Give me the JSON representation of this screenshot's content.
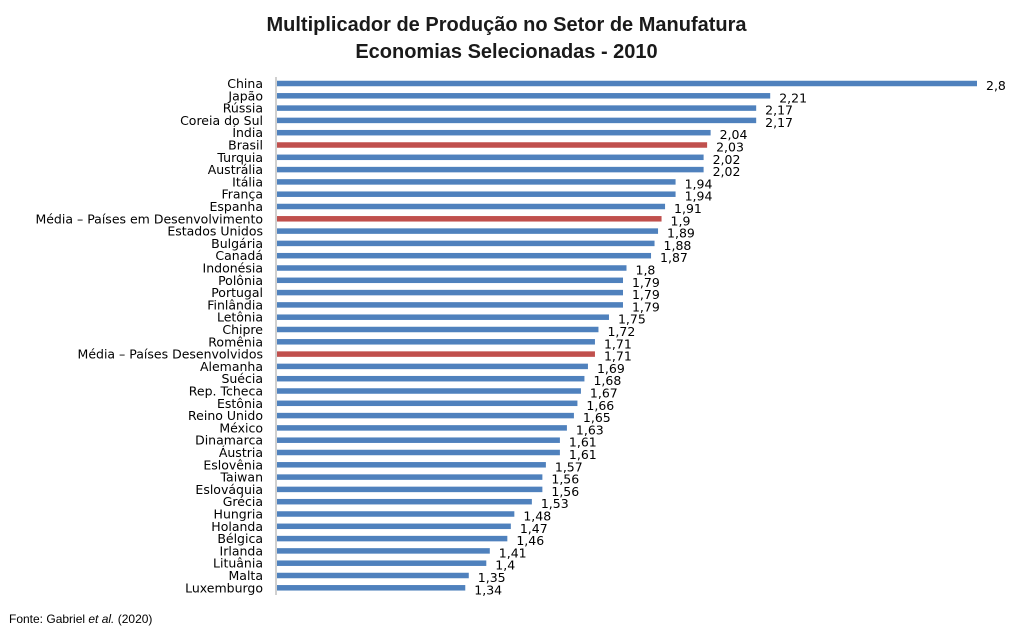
{
  "chart_data": {
    "type": "bar",
    "orientation": "horizontal",
    "title": "Multiplicador de Produção no Setor de Manufatura",
    "subtitle": "Economias Selecionadas - 2010",
    "categories": [
      "China",
      "Japão",
      "Rússia",
      "Coreia do Sul",
      "Índia",
      "Brasil",
      "Turquia",
      "Austrália",
      "Itália",
      "França",
      "Espanha",
      "Média – Países em Desenvolvimento",
      "Estados Unidos",
      "Bulgária",
      "Canadá",
      "Indonésia",
      "Polônia",
      "Portugal",
      "Finlândia",
      "Letônia",
      "Chipre",
      "Romênia",
      "Média – Países Desenvolvidos",
      "Alemanha",
      "Suécia",
      "Rep. Tcheca",
      "Estônia",
      "Reino Unido",
      "México",
      "Dinamarca",
      "Áustria",
      "Eslovênia",
      "Taiwan",
      "Eslováquia",
      "Grécia",
      "Hungria",
      "Holanda",
      "Bélgica",
      "Irlanda",
      "Lituânia",
      "Malta",
      "Luxemburgo"
    ],
    "values": [
      2.8,
      2.21,
      2.17,
      2.17,
      2.04,
      2.03,
      2.02,
      2.02,
      1.94,
      1.94,
      1.91,
      1.9,
      1.89,
      1.88,
      1.87,
      1.8,
      1.79,
      1.79,
      1.79,
      1.75,
      1.72,
      1.71,
      1.71,
      1.69,
      1.68,
      1.67,
      1.66,
      1.65,
      1.63,
      1.61,
      1.61,
      1.57,
      1.56,
      1.56,
      1.53,
      1.48,
      1.47,
      1.46,
      1.41,
      1.4,
      1.35,
      1.34
    ],
    "value_labels": [
      "2,8",
      "2,21",
      "2,17",
      "2,17",
      "2,04",
      "2,03",
      "2,02",
      "2,02",
      "1,94",
      "1,94",
      "1,91",
      "1,9",
      "1,89",
      "1,88",
      "1,87",
      "1,8",
      "1,79",
      "1,79",
      "1,79",
      "1,75",
      "1,72",
      "1,71",
      "1,71",
      "1,69",
      "1,68",
      "1,67",
      "1,66",
      "1,65",
      "1,63",
      "1,61",
      "1,61",
      "1,57",
      "1,56",
      "1,56",
      "1,53",
      "1,48",
      "1,47",
      "1,46",
      "1,41",
      "1,4",
      "1,35",
      "1,34"
    ],
    "highlighted": [
      "Brasil",
      "Média – Países em Desenvolvimento",
      "Média – Países Desenvolvidos"
    ],
    "colors": {
      "default": "#4f81bd",
      "highlight": "#c0504d",
      "axis": "#a0a0a0"
    },
    "xlabel": "",
    "ylabel": "",
    "grid": false,
    "legend": "none"
  },
  "source": {
    "prefix": "Fonte: Gabriel ",
    "italic": "et al.",
    "suffix": " (2020)"
  }
}
